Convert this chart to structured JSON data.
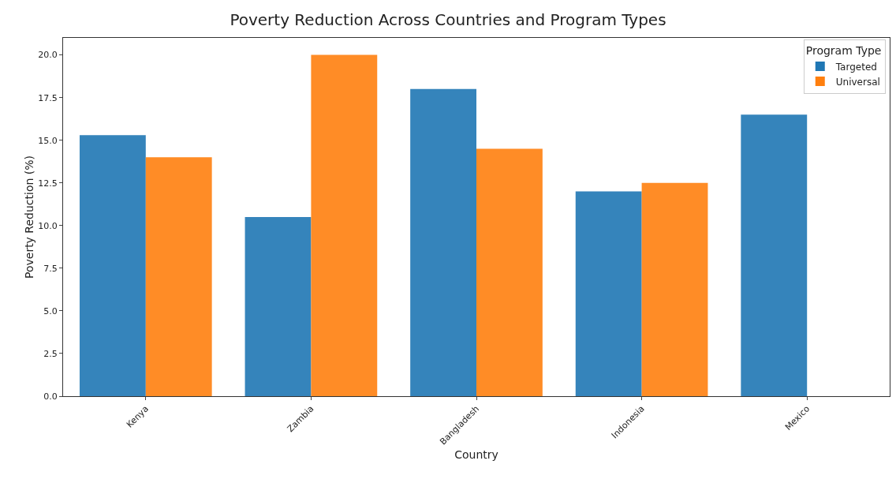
{
  "chart_data": {
    "type": "bar",
    "title": "Poverty Reduction Across Countries and Program Types",
    "xlabel": "Country",
    "ylabel": "Poverty Reduction (%)",
    "legend_title": "Program Type",
    "categories": [
      "Kenya",
      "Zambia",
      "Bangladesh",
      "Indonesia",
      "Mexico"
    ],
    "series": [
      {
        "name": "Targeted",
        "color": "#1f77b4",
        "values": [
          15.3,
          10.5,
          18.0,
          12.0,
          16.5
        ]
      },
      {
        "name": "Universal",
        "color": "#ff7f0e",
        "values": [
          14.0,
          20.0,
          14.5,
          12.5,
          null
        ]
      }
    ],
    "ylim": [
      0,
      21
    ],
    "yticks": [
      {
        "value": 0,
        "label": "0.0"
      },
      {
        "value": 2.5,
        "label": "2.5"
      },
      {
        "value": 5,
        "label": "5.0"
      },
      {
        "value": 7.5,
        "label": "7.5"
      },
      {
        "value": 10,
        "label": "10.0"
      },
      {
        "value": 12.5,
        "label": "12.5"
      },
      {
        "value": 15,
        "label": "15.0"
      },
      {
        "value": 17.5,
        "label": "17.5"
      },
      {
        "value": 20,
        "label": "20.0"
      }
    ],
    "grid": false,
    "legend": "top right"
  }
}
